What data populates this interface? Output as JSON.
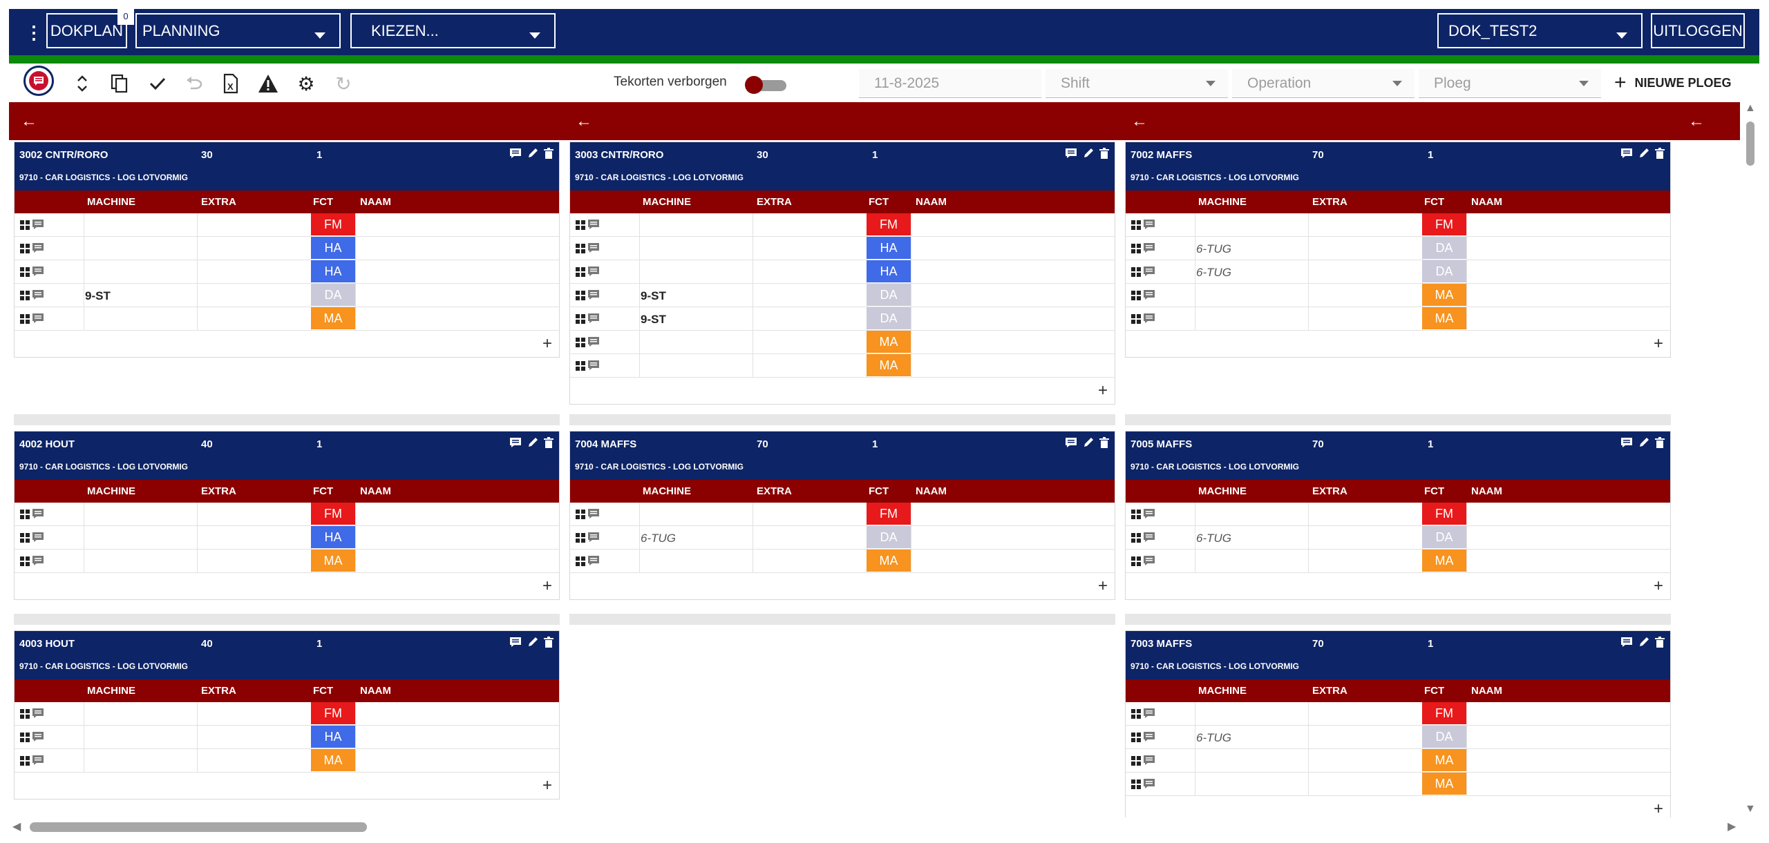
{
  "header": {
    "app_button": "DOKPLAN",
    "badge": "0",
    "module_select": "PLANNING",
    "choose_select": "KIEZEN...",
    "site_select": "DOK_TEST2",
    "logout": "UITLOGGEN"
  },
  "toolbar": {
    "shortages_label": "Tekorten verborgen",
    "date_value": "11-8-2025",
    "shift_placeholder": "Shift",
    "operation_placeholder": "Operation",
    "crew_placeholder": "Ploeg",
    "new_crew": "NIEUWE PLOEG"
  },
  "columns": {
    "machine": "MACHINE",
    "extra": "EXTRA",
    "fct": "FCT",
    "naam": "NAAM"
  },
  "colors": {
    "FM": "#e8191a",
    "HA": "#3f6ae8",
    "DA": "#c9c9d9",
    "MA": "#f7931e",
    "navy": "#0d2466",
    "darkred": "#8b0000"
  },
  "cards": [
    {
      "title": "3002 CNTR/RORO",
      "n1": "30",
      "n2": "1",
      "subtitle": "9710 - CAR LOGISTICS - LOG LOTVORMIG",
      "rows": [
        {
          "machine": "",
          "fct": "FM"
        },
        {
          "machine": "",
          "fct": "HA"
        },
        {
          "machine": "",
          "fct": "HA"
        },
        {
          "machine": "9-ST",
          "fct": "DA"
        },
        {
          "machine": "",
          "fct": "MA"
        }
      ]
    },
    {
      "title": "3003 CNTR/RORO",
      "n1": "30",
      "n2": "1",
      "subtitle": "9710 - CAR LOGISTICS - LOG LOTVORMIG",
      "rows": [
        {
          "machine": "",
          "fct": "FM"
        },
        {
          "machine": "",
          "fct": "HA"
        },
        {
          "machine": "",
          "fct": "HA"
        },
        {
          "machine": "9-ST",
          "fct": "DA"
        },
        {
          "machine": "9-ST",
          "fct": "DA"
        },
        {
          "machine": "",
          "fct": "MA"
        },
        {
          "machine": "",
          "fct": "MA"
        }
      ]
    },
    {
      "title": "7002 MAFFS",
      "n1": "70",
      "n2": "1",
      "subtitle": "9710 - CAR LOGISTICS - LOG LOTVORMIG",
      "rows": [
        {
          "machine": "",
          "fct": "FM"
        },
        {
          "machine": "6-TUG",
          "fct": "DA"
        },
        {
          "machine": "6-TUG",
          "fct": "DA"
        },
        {
          "machine": "",
          "fct": "MA"
        },
        {
          "machine": "",
          "fct": "MA"
        }
      ]
    },
    {
      "title": "4002 HOUT",
      "n1": "40",
      "n2": "1",
      "subtitle": "9710 - CAR LOGISTICS - LOG LOTVORMIG",
      "rows": [
        {
          "machine": "",
          "fct": "FM"
        },
        {
          "machine": "",
          "fct": "HA"
        },
        {
          "machine": "",
          "fct": "MA"
        }
      ]
    },
    {
      "title": "7004 MAFFS",
      "n1": "70",
      "n2": "1",
      "subtitle": "9710 - CAR LOGISTICS - LOG LOTVORMIG",
      "rows": [
        {
          "machine": "",
          "fct": "FM"
        },
        {
          "machine": "6-TUG",
          "fct": "DA"
        },
        {
          "machine": "",
          "fct": "MA"
        }
      ]
    },
    {
      "title": "7005 MAFFS",
      "n1": "70",
      "n2": "1",
      "subtitle": "9710 - CAR LOGISTICS - LOG LOTVORMIG",
      "rows": [
        {
          "machine": "",
          "fct": "FM"
        },
        {
          "machine": "6-TUG",
          "fct": "DA"
        },
        {
          "machine": "",
          "fct": "MA"
        }
      ]
    },
    {
      "title": "4003 HOUT",
      "n1": "40",
      "n2": "1",
      "subtitle": "9710 - CAR LOGISTICS - LOG LOTVORMIG",
      "rows": [
        {
          "machine": "",
          "fct": "FM"
        },
        {
          "machine": "",
          "fct": "HA"
        },
        {
          "machine": "",
          "fct": "MA"
        }
      ]
    },
    {
      "title": "7003 MAFFS",
      "n1": "70",
      "n2": "1",
      "subtitle": "9710 - CAR LOGISTICS - LOG LOTVORMIG",
      "rows": [
        {
          "machine": "",
          "fct": "FM"
        },
        {
          "machine": "6-TUG",
          "fct": "DA"
        },
        {
          "machine": "",
          "fct": "MA"
        },
        {
          "machine": "",
          "fct": "MA"
        }
      ]
    }
  ]
}
